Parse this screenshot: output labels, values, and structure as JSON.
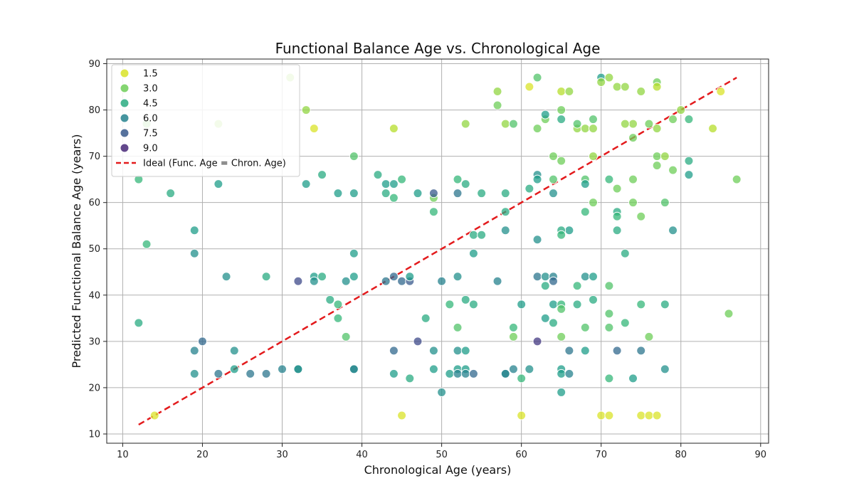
{
  "chart_data": {
    "type": "scatter",
    "title": "Functional Balance Age vs. Chronological Age",
    "xlabel": "Chronological Age (years)",
    "ylabel": "Predicted Functional Balance Age (years)",
    "xlim": [
      8,
      91
    ],
    "ylim": [
      8,
      91
    ],
    "xticks": [
      10,
      20,
      30,
      40,
      50,
      60,
      70,
      80,
      90
    ],
    "yticks": [
      10,
      20,
      30,
      40,
      50,
      60,
      70,
      80,
      90
    ],
    "grid": true,
    "legend_position": "top-left",
    "colormap": "viridis",
    "hue_range": [
      1,
      10
    ],
    "legend": {
      "hue_entries": [
        {
          "label": "1.5",
          "value": 1.5
        },
        {
          "label": "3.0",
          "value": 3.0
        },
        {
          "label": "4.5",
          "value": 4.5
        },
        {
          "label": "6.0",
          "value": 6.0
        },
        {
          "label": "7.5",
          "value": 7.5
        },
        {
          "label": "9.0",
          "value": 9.0
        }
      ],
      "line_label": "Ideal (Func. Age = Chron. Age)"
    },
    "ideal_line": {
      "x": [
        12,
        87
      ],
      "y": [
        12,
        87
      ],
      "color": "#e31a1c",
      "style": "dashed"
    },
    "points": [
      [
        13,
        77,
        3
      ],
      [
        22,
        77,
        2.5
      ],
      [
        31,
        87,
        2.5
      ],
      [
        34,
        76,
        1.5
      ],
      [
        33,
        80,
        2.5
      ],
      [
        39,
        70,
        3.5
      ],
      [
        44,
        76,
        2
      ],
      [
        45,
        65,
        4
      ],
      [
        57,
        84,
        2.5
      ],
      [
        57,
        81,
        3
      ],
      [
        61,
        85,
        1.5
      ],
      [
        62,
        87,
        3.5
      ],
      [
        65,
        84,
        2
      ],
      [
        66,
        84,
        2.5
      ],
      [
        65,
        80,
        3
      ],
      [
        58,
        77,
        2.5
      ],
      [
        59,
        77,
        3.5
      ],
      [
        53,
        77,
        2.5
      ],
      [
        63,
        78,
        3
      ],
      [
        67,
        76,
        2.5
      ],
      [
        68,
        76,
        2.5
      ],
      [
        69,
        76,
        2.5
      ],
      [
        69,
        78,
        3.5
      ],
      [
        70,
        87,
        5
      ],
      [
        71,
        87,
        2.5
      ],
      [
        72,
        85,
        2.5
      ],
      [
        73,
        85,
        2.5
      ],
      [
        70,
        86,
        2.5
      ],
      [
        77,
        86,
        3
      ],
      [
        77,
        85,
        2
      ],
      [
        80,
        80,
        2.5
      ],
      [
        85,
        84,
        1.5
      ],
      [
        75,
        84,
        2.5
      ],
      [
        74,
        77,
        2.5
      ],
      [
        73,
        77,
        2.5
      ],
      [
        76,
        77,
        3
      ],
      [
        77,
        76,
        2.5
      ],
      [
        84,
        76,
        2
      ],
      [
        74,
        74,
        3
      ],
      [
        79,
        78,
        3
      ],
      [
        81,
        78,
        4
      ],
      [
        64,
        70,
        3
      ],
      [
        65,
        69,
        3
      ],
      [
        69,
        70,
        2.5
      ],
      [
        77,
        70,
        3
      ],
      [
        78,
        70,
        2.5
      ],
      [
        77,
        68,
        3
      ],
      [
        81,
        69,
        4.5
      ],
      [
        79,
        67,
        3
      ],
      [
        81,
        66,
        5
      ],
      [
        87,
        65,
        3
      ],
      [
        74,
        65,
        3
      ],
      [
        71,
        65,
        4
      ],
      [
        72,
        63,
        3
      ],
      [
        68,
        65,
        3.5
      ],
      [
        64,
        65,
        3.5
      ],
      [
        74,
        60,
        3
      ],
      [
        69,
        60,
        3
      ],
      [
        78,
        60,
        3.5
      ],
      [
        72,
        58,
        4.5
      ],
      [
        72,
        57,
        4
      ],
      [
        75,
        57,
        3
      ],
      [
        68,
        58,
        4
      ],
      [
        72,
        54,
        4.5
      ],
      [
        79,
        54,
        5.5
      ],
      [
        66,
        54,
        5
      ],
      [
        65,
        54,
        4.5
      ],
      [
        65,
        53,
        4
      ],
      [
        73,
        49,
        4.5
      ],
      [
        63,
        79,
        5
      ],
      [
        62,
        76,
        3
      ],
      [
        65,
        78,
        4.5
      ],
      [
        62,
        66,
        5.5
      ],
      [
        62,
        65,
        5
      ],
      [
        61,
        63,
        4.5
      ],
      [
        64,
        62,
        5.5
      ],
      [
        68,
        64,
        5
      ],
      [
        67,
        77,
        3.5
      ],
      [
        12,
        65,
        4
      ],
      [
        12,
        34,
        4.5
      ],
      [
        13,
        51,
        4
      ],
      [
        16,
        62,
        4.5
      ],
      [
        19,
        54,
        5
      ],
      [
        19,
        49,
        5.5
      ],
      [
        22,
        64,
        5
      ],
      [
        23,
        44,
        5.5
      ],
      [
        28,
        44,
        4.5
      ],
      [
        33,
        64,
        5
      ],
      [
        35,
        66,
        4.5
      ],
      [
        34,
        44,
        5
      ],
      [
        34,
        43,
        5.5
      ],
      [
        35,
        44,
        4.5
      ],
      [
        37,
        62,
        5
      ],
      [
        37,
        38,
        4
      ],
      [
        36,
        39,
        4.5
      ],
      [
        37,
        35,
        4
      ],
      [
        38,
        31,
        3.5
      ],
      [
        38,
        43,
        5.5
      ],
      [
        39,
        62,
        5
      ],
      [
        39,
        49,
        5
      ],
      [
        39,
        44,
        5
      ],
      [
        42,
        66,
        4.5
      ],
      [
        43,
        64,
        5
      ],
      [
        43,
        62,
        4.5
      ],
      [
        44,
        61,
        4
      ],
      [
        44,
        64,
        5
      ],
      [
        47,
        62,
        5
      ],
      [
        43,
        43,
        6.5
      ],
      [
        44,
        44,
        7
      ],
      [
        45,
        43,
        7
      ],
      [
        46,
        43,
        7.5
      ],
      [
        46,
        44,
        5
      ],
      [
        48,
        35,
        4.5
      ],
      [
        49,
        58,
        4
      ],
      [
        49,
        61,
        3
      ],
      [
        49,
        62,
        7.5
      ],
      [
        50,
        43,
        6
      ],
      [
        51,
        38,
        4
      ],
      [
        52,
        65,
        4
      ],
      [
        52,
        62,
        6.5
      ],
      [
        53,
        64,
        4.5
      ],
      [
        52,
        44,
        5.5
      ],
      [
        52,
        33,
        3.5
      ],
      [
        53,
        39,
        4.5
      ],
      [
        54,
        53,
        4.5
      ],
      [
        55,
        53,
        4.5
      ],
      [
        55,
        62,
        4.5
      ],
      [
        54,
        49,
        5
      ],
      [
        54,
        38,
        4.5
      ],
      [
        57,
        43,
        6
      ],
      [
        58,
        62,
        4.5
      ],
      [
        58,
        58,
        4.5
      ],
      [
        58,
        54,
        5.5
      ],
      [
        59,
        33,
        4
      ],
      [
        59,
        31,
        3
      ],
      [
        60,
        38,
        5
      ],
      [
        62,
        52,
        5.5
      ],
      [
        62,
        44,
        6.5
      ],
      [
        63,
        44,
        5.5
      ],
      [
        64,
        44,
        6
      ],
      [
        64,
        43,
        7
      ],
      [
        63,
        42,
        4.5
      ],
      [
        64,
        38,
        5
      ],
      [
        63,
        35,
        5
      ],
      [
        64,
        34,
        4.5
      ],
      [
        65,
        38,
        4
      ],
      [
        65,
        37,
        3.5
      ],
      [
        67,
        38,
        4.5
      ],
      [
        67,
        42,
        4
      ],
      [
        68,
        44,
        5.5
      ],
      [
        69,
        44,
        5
      ],
      [
        69,
        39,
        4.5
      ],
      [
        68,
        33,
        3.5
      ],
      [
        71,
        42,
        3.5
      ],
      [
        71,
        36,
        3.5
      ],
      [
        71,
        33,
        3.5
      ],
      [
        73,
        34,
        4
      ],
      [
        75,
        38,
        4
      ],
      [
        78,
        38,
        4.5
      ],
      [
        76,
        31,
        3
      ],
      [
        86,
        36,
        3
      ],
      [
        65,
        31,
        3
      ],
      [
        19,
        28,
        6
      ],
      [
        19,
        23,
        5.5
      ],
      [
        20,
        30,
        7
      ],
      [
        22,
        23,
        6.5
      ],
      [
        24,
        28,
        5.5
      ],
      [
        24,
        24,
        5
      ],
      [
        26,
        23,
        6.5
      ],
      [
        28,
        23,
        6.5
      ],
      [
        30,
        24,
        6
      ],
      [
        32,
        24,
        5.5
      ],
      [
        32,
        24,
        5.5
      ],
      [
        32,
        43,
        8
      ],
      [
        39,
        24,
        5
      ],
      [
        39,
        24,
        6
      ],
      [
        44,
        28,
        7
      ],
      [
        44,
        23,
        5
      ],
      [
        46,
        22,
        4.5
      ],
      [
        47,
        30,
        8
      ],
      [
        49,
        28,
        5.5
      ],
      [
        49,
        24,
        5
      ],
      [
        50,
        19,
        5.5
      ],
      [
        51,
        23,
        5
      ],
      [
        52,
        28,
        5.5
      ],
      [
        52,
        24,
        5
      ],
      [
        52,
        23,
        6
      ],
      [
        53,
        28,
        5
      ],
      [
        53,
        24,
        5
      ],
      [
        53,
        23,
        6
      ],
      [
        54,
        23,
        7
      ],
      [
        58,
        23,
        5.5
      ],
      [
        58,
        23,
        6
      ],
      [
        59,
        24,
        6
      ],
      [
        60,
        22,
        4
      ],
      [
        61,
        24,
        5.5
      ],
      [
        62,
        30,
        8.5
      ],
      [
        65,
        24,
        5
      ],
      [
        65,
        23,
        5
      ],
      [
        65,
        19,
        5
      ],
      [
        66,
        28,
        6.5
      ],
      [
        66,
        23,
        6
      ],
      [
        68,
        28,
        5
      ],
      [
        71,
        22,
        4
      ],
      [
        72,
        28,
        7
      ],
      [
        74,
        22,
        5
      ],
      [
        75,
        28,
        6.5
      ],
      [
        78,
        24,
        5.5
      ],
      [
        14,
        14,
        1.5
      ],
      [
        45,
        14,
        1.5
      ],
      [
        60,
        14,
        1.5
      ],
      [
        70,
        14,
        1.5
      ],
      [
        71,
        14,
        1.5
      ],
      [
        75,
        14,
        1.5
      ],
      [
        76,
        14,
        1.5
      ],
      [
        77,
        14,
        1.5
      ]
    ]
  }
}
